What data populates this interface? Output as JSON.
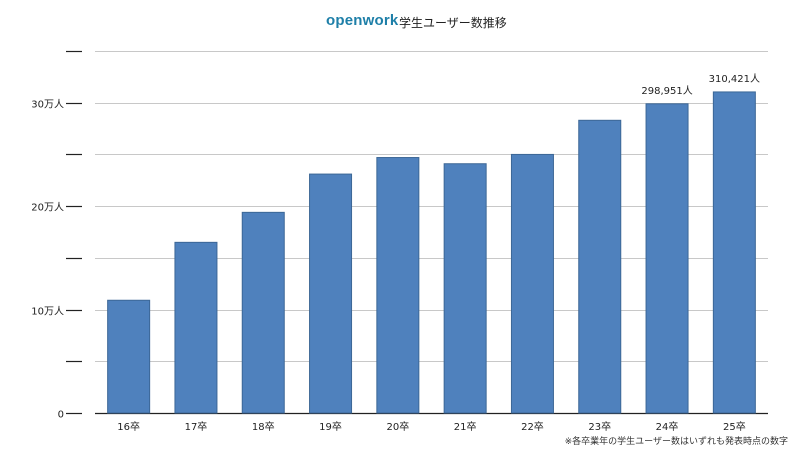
{
  "header": {
    "brand": "openwork",
    "title": "学生ユーザー数推移"
  },
  "footnote": "※各卒業年の学生ユーザー数はいずれも発表時点の数字",
  "colors": {
    "bar": "#4f81bd",
    "bar_edge": "#3c6796",
    "grid": "#c8c8c8",
    "axis": "#222222",
    "brand": "#1e7fa8"
  },
  "chart_data": {
    "type": "bar",
    "categories": [
      "16卒",
      "17卒",
      "18卒",
      "19卒",
      "20卒",
      "21卒",
      "22卒",
      "23卒",
      "24卒",
      "25卒"
    ],
    "values": [
      109000,
      165000,
      194000,
      231000,
      247000,
      241000,
      250000,
      283000,
      298951,
      310421
    ],
    "data_labels": [
      "",
      "",
      "",
      "",
      "",
      "",
      "",
      "",
      "298,951人",
      "310,421人"
    ],
    "ylim": [
      0,
      350000
    ],
    "y_ticks": [
      {
        "value": 0,
        "label": "0"
      },
      {
        "value": 50000,
        "label": ""
      },
      {
        "value": 100000,
        "label": "10万人"
      },
      {
        "value": 150000,
        "label": ""
      },
      {
        "value": 200000,
        "label": "20万人"
      },
      {
        "value": 250000,
        "label": ""
      },
      {
        "value": 300000,
        "label": "30万人"
      },
      {
        "value": 350000,
        "label": ""
      }
    ],
    "grid": true,
    "legend": "none"
  }
}
